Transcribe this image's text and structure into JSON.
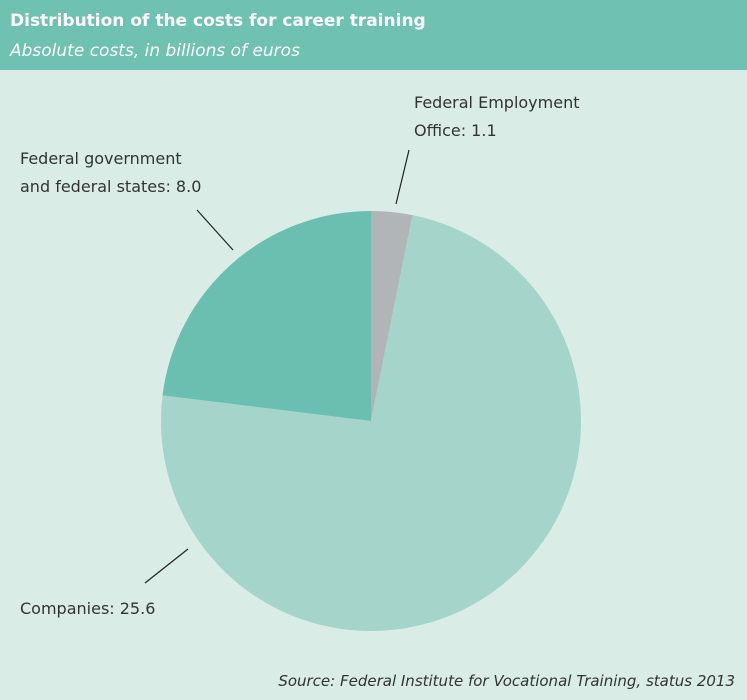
{
  "chart_data": {
    "type": "pie",
    "title": "Distribution of the costs for career training",
    "subtitle": "Absolute costs, in billions of euros",
    "source": "Source: Federal Institute for Vocational Training, status 2013",
    "values": [
      1.1,
      25.6,
      8.0
    ],
    "value_labels": [
      [
        "Federal Employment",
        "Office: 1.1"
      ],
      [
        "Companies: 25.6"
      ],
      [
        "Federal government",
        "and federal states: 8.0"
      ]
    ],
    "colors": [
      "#b1b5b7",
      "#a5d4ca",
      "#6bbfb0"
    ]
  }
}
